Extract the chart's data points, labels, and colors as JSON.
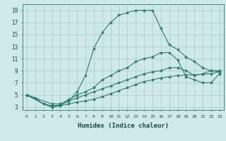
{
  "xlabel": "Humidex (Indice chaleur)",
  "background_color": "#cfe8e8",
  "grid_color": "#a8cccc",
  "line_color": "#2d7a6e",
  "xlim": [
    -0.5,
    23.5
  ],
  "ylim": [
    2.5,
    20.0
  ],
  "xticks": [
    0,
    1,
    2,
    3,
    4,
    5,
    6,
    7,
    8,
    9,
    10,
    11,
    12,
    13,
    14,
    15,
    16,
    17,
    18,
    19,
    20,
    21,
    22,
    23
  ],
  "yticks": [
    3,
    5,
    7,
    9,
    11,
    13,
    15,
    17,
    19
  ],
  "line1_x": [
    0,
    1,
    2,
    3,
    4,
    5,
    6,
    7,
    8,
    9,
    10,
    11,
    12,
    13,
    14,
    15,
    16,
    17,
    18,
    19,
    20,
    21,
    22,
    23
  ],
  "line1_y": [
    5,
    4.5,
    3.5,
    3.2,
    3.3,
    4.0,
    5.5,
    8.2,
    12.7,
    15.3,
    17.0,
    18.2,
    18.6,
    19.0,
    19.0,
    19.0,
    16.0,
    13.3,
    12.5,
    11.3,
    10.5,
    9.5,
    9.0,
    8.8
  ],
  "line2_x": [
    0,
    3,
    4,
    5,
    6,
    7,
    8,
    9,
    10,
    11,
    12,
    13,
    14,
    15,
    16,
    17,
    18,
    19,
    20,
    21,
    22,
    23
  ],
  "line2_y": [
    5,
    3.5,
    3.5,
    4.2,
    5.0,
    5.5,
    6.2,
    7.5,
    8.2,
    9.0,
    9.5,
    10.5,
    11.0,
    11.3,
    12.0,
    12.0,
    10.8,
    8.0,
    7.5,
    7.0,
    7.0,
    8.5
  ],
  "line3_x": [
    0,
    2,
    3,
    4,
    5,
    6,
    7,
    8,
    9,
    10,
    11,
    12,
    13,
    14,
    15,
    16,
    17,
    18,
    19,
    20,
    21,
    22,
    23
  ],
  "line3_y": [
    5,
    3.5,
    3.0,
    3.3,
    4.0,
    4.5,
    5.0,
    5.5,
    6.0,
    6.5,
    7.0,
    7.5,
    8.0,
    8.5,
    8.8,
    9.0,
    9.5,
    9.5,
    9.0,
    8.2,
    8.5,
    9.0,
    9.0
  ],
  "line4_x": [
    0,
    2,
    3,
    4,
    5,
    6,
    7,
    8,
    9,
    10,
    11,
    12,
    13,
    14,
    15,
    16,
    17,
    18,
    19,
    20,
    21,
    22,
    23
  ],
  "line4_y": [
    5,
    3.5,
    3.0,
    3.2,
    3.5,
    3.8,
    4.0,
    4.3,
    4.7,
    5.2,
    5.7,
    6.2,
    6.7,
    7.2,
    7.5,
    7.8,
    8.0,
    8.2,
    8.3,
    8.3,
    8.4,
    8.5,
    8.8
  ],
  "marker": "*",
  "markersize": 3,
  "linewidth": 0.8
}
